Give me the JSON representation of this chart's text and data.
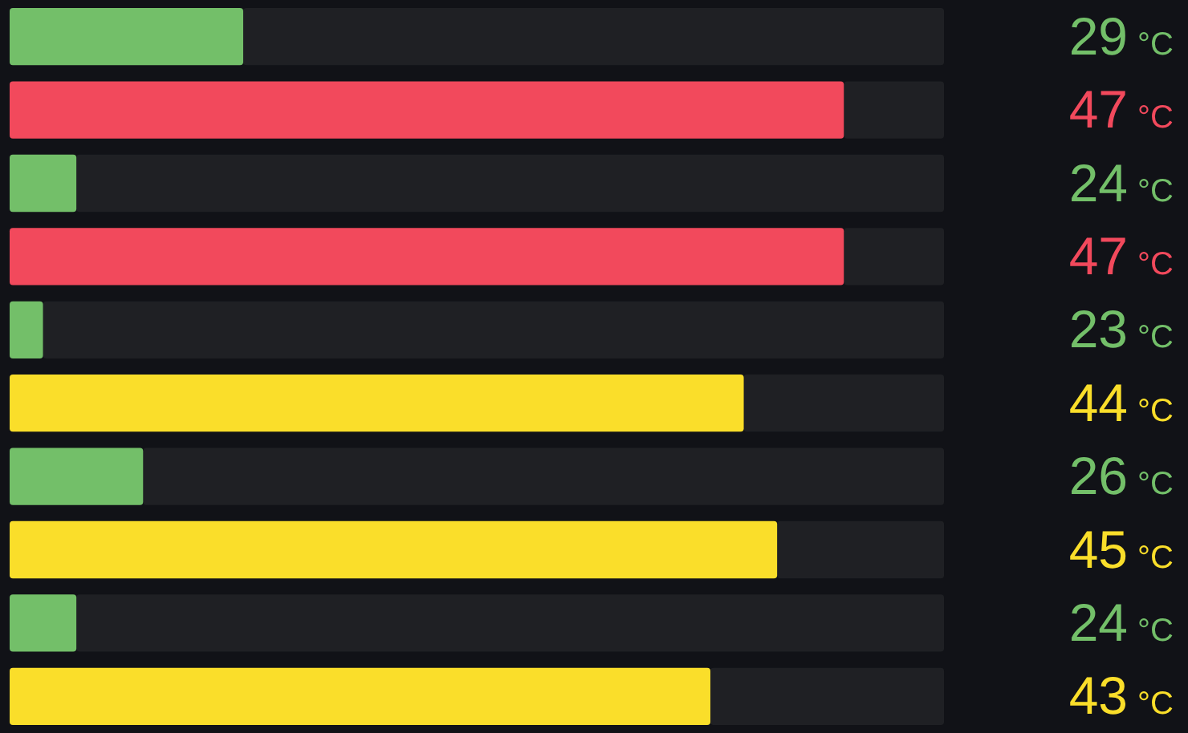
{
  "chart_data": {
    "type": "bar",
    "orientation": "horizontal",
    "categories": [
      null,
      null,
      null,
      null,
      null,
      null,
      null,
      null,
      null,
      null
    ],
    "values": [
      29,
      47,
      24,
      47,
      23,
      44,
      26,
      45,
      24,
      43
    ],
    "colors": [
      "#73bf69",
      "#f2495c",
      "#73bf69",
      "#f2495c",
      "#73bf69",
      "#fade2a",
      "#73bf69",
      "#fade2a",
      "#73bf69",
      "#fade2a"
    ],
    "value_labels": [
      "29 °C",
      "47 °C",
      "24 °C",
      "47 °C",
      "23 °C",
      "44 °C",
      "26 °C",
      "45 °C",
      "24 °C",
      "43 °C"
    ],
    "xlim": [
      22,
      50
    ]
  }
}
